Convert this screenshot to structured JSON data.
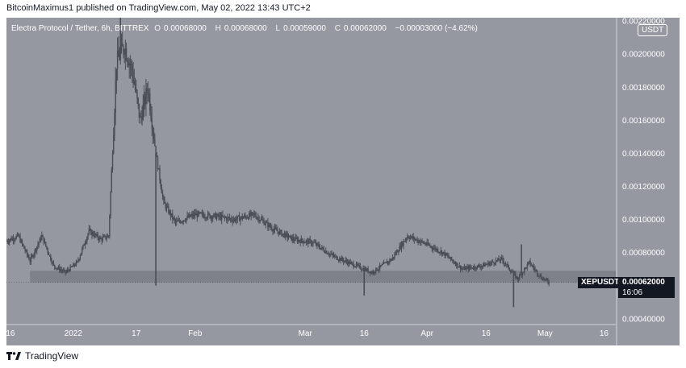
{
  "header": {
    "text": "BitcoinMaximus1 published on TradingView.com, May 02, 2022 13:43 UTC+2"
  },
  "legend": {
    "symbol_desc": "Electra Protocol / Tether, 6h, BITTREX",
    "o_label": "O",
    "o_value": "0.00068000",
    "h_label": "H",
    "h_value": "0.00068000",
    "l_label": "L",
    "l_value": "0.00059000",
    "c_label": "C",
    "c_value": "0.00062000",
    "change": "−0.00003000 (−4.62%)"
  },
  "currency_badge": "USDT",
  "price_tag": {
    "symbol": "XEPUSDT",
    "price": "0.00062000",
    "countdown": "16:06"
  },
  "footer": {
    "brand": "TradingView"
  },
  "colors": {
    "background": "#9598a1",
    "candle": "#4a4d55",
    "zone": "#777a83",
    "tag_bg": "#131722"
  },
  "chart_data": {
    "type": "candlestick",
    "title": "Electra Protocol / Tether, 6h, BITTREX",
    "x_ticks": [
      "16",
      "2022",
      "17",
      "Feb",
      "Mar",
      "16",
      "Apr",
      "16",
      "May",
      "16"
    ],
    "x_tick_dates": [
      "2021-12-16",
      "2022-01-01",
      "2022-01-17",
      "2022-02-01",
      "2022-03-01",
      "2022-03-16",
      "2022-04-01",
      "2022-04-16",
      "2022-05-01",
      "2022-05-16"
    ],
    "y_ticks": [
      "0.00040000",
      "0.00060000",
      "0.00080000",
      "0.00100000",
      "0.00120000",
      "0.00140000",
      "0.00160000",
      "0.00180000",
      "0.00200000",
      "0.00220000"
    ],
    "y_range": [
      0.00037,
      0.00222
    ],
    "x_range": [
      "2021-12-15",
      "2022-05-19"
    ],
    "support_zone": {
      "from": "2021-12-21",
      "to": "2022-05-19",
      "low": 0.00062,
      "high": 0.00069
    },
    "close_series": [
      {
        "date": "2021-12-15",
        "close": 0.00087
      },
      {
        "date": "2021-12-18",
        "close": 0.0009
      },
      {
        "date": "2021-12-21",
        "close": 0.00075
      },
      {
        "date": "2021-12-24",
        "close": 0.0009
      },
      {
        "date": "2021-12-27",
        "close": 0.00072
      },
      {
        "date": "2021-12-30",
        "close": 0.00068
      },
      {
        "date": "2022-01-02",
        "close": 0.00074
      },
      {
        "date": "2022-01-05",
        "close": 0.00093
      },
      {
        "date": "2022-01-08",
        "close": 0.00088
      },
      {
        "date": "2022-01-10",
        "close": 0.0009
      },
      {
        "date": "2022-01-12",
        "close": 0.00195
      },
      {
        "date": "2022-01-14",
        "close": 0.00205
      },
      {
        "date": "2022-01-16",
        "close": 0.0019
      },
      {
        "date": "2022-01-18",
        "close": 0.0016
      },
      {
        "date": "2022-01-20",
        "close": 0.0018
      },
      {
        "date": "2022-01-22",
        "close": 0.0014
      },
      {
        "date": "2022-01-24",
        "close": 0.0011
      },
      {
        "date": "2022-01-27",
        "close": 0.00098
      },
      {
        "date": "2022-02-01",
        "close": 0.00103
      },
      {
        "date": "2022-02-06",
        "close": 0.00102
      },
      {
        "date": "2022-02-11",
        "close": 0.001
      },
      {
        "date": "2022-02-16",
        "close": 0.00103
      },
      {
        "date": "2022-02-21",
        "close": 0.00094
      },
      {
        "date": "2022-02-26",
        "close": 0.00088
      },
      {
        "date": "2022-03-03",
        "close": 0.00086
      },
      {
        "date": "2022-03-08",
        "close": 0.00078
      },
      {
        "date": "2022-03-13",
        "close": 0.00073
      },
      {
        "date": "2022-03-18",
        "close": 0.00068
      },
      {
        "date": "2022-03-23",
        "close": 0.00076
      },
      {
        "date": "2022-03-27",
        "close": 0.0009
      },
      {
        "date": "2022-03-31",
        "close": 0.00086
      },
      {
        "date": "2022-04-05",
        "close": 0.0008
      },
      {
        "date": "2022-04-10",
        "close": 0.0007
      },
      {
        "date": "2022-04-15",
        "close": 0.00072
      },
      {
        "date": "2022-04-20",
        "close": 0.00076
      },
      {
        "date": "2022-04-24",
        "close": 0.00064
      },
      {
        "date": "2022-04-27",
        "close": 0.00074
      },
      {
        "date": "2022-04-30",
        "close": 0.00065
      },
      {
        "date": "2022-05-02",
        "close": 0.00062
      }
    ],
    "notable_wicks": [
      {
        "date": "2022-01-22",
        "low": 0.0006
      },
      {
        "date": "2022-03-16",
        "low": 0.00054
      },
      {
        "date": "2022-04-23",
        "low": 0.00047
      },
      {
        "date": "2022-01-13",
        "high": 0.00222
      },
      {
        "date": "2022-04-25",
        "high": 0.00085
      }
    ]
  }
}
